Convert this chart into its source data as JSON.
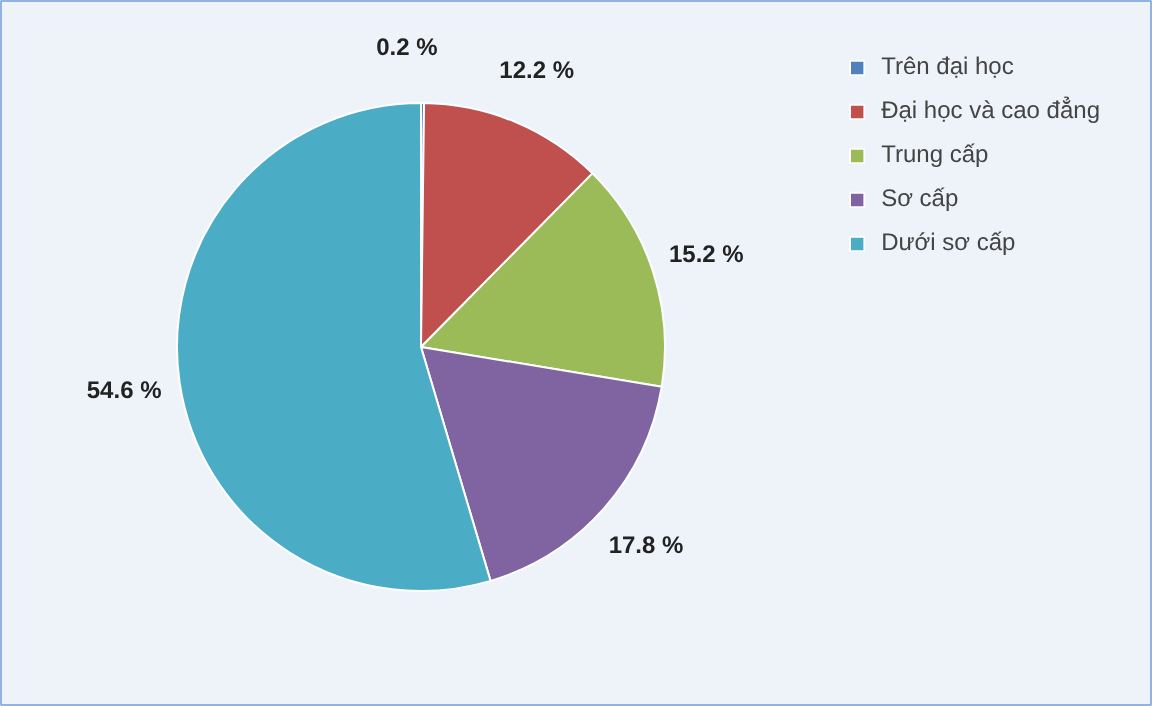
{
  "chart_data": {
    "type": "pie",
    "categories": [
      "Trên đại học",
      "Đại học và cao đẳng",
      "Trung cấp",
      "Sơ cấp",
      "Dưới sơ cấp"
    ],
    "values": [
      0.2,
      12.2,
      15.2,
      17.8,
      54.6
    ],
    "colors": [
      "#4f81bd",
      "#c0504d",
      "#9bbb59",
      "#8064a2",
      "#4bacc6"
    ],
    "value_labels": [
      "0.2 %",
      "12.2 %",
      "15.2 %",
      "17.8 %",
      "54.6 %"
    ],
    "legend": "top right"
  }
}
